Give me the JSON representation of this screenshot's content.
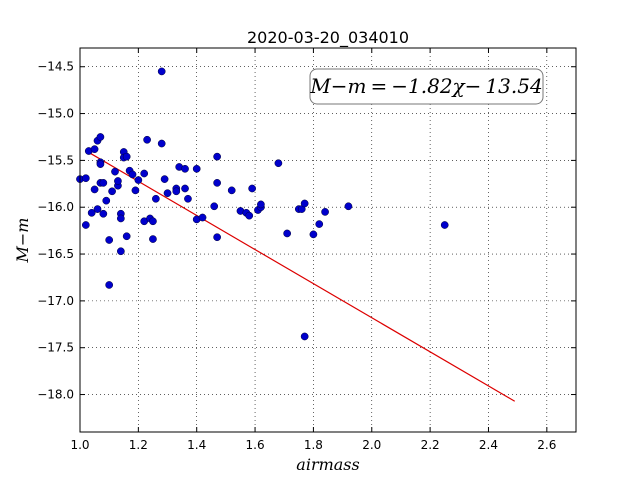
{
  "chart_data": {
    "type": "scatter",
    "title": "2020-03-20_034010",
    "xlabel": "airmass",
    "ylabel": "M−m",
    "xlim": [
      1.0,
      2.7
    ],
    "ylim": [
      -18.4,
      -14.3
    ],
    "y_inverted": true,
    "grid": true,
    "x_ticks": [
      1.0,
      1.2,
      1.4,
      1.6,
      1.8,
      2.0,
      2.2,
      2.4,
      2.6
    ],
    "x_tick_labels": [
      "1.0",
      "1.2",
      "1.4",
      "1.6",
      "1.8",
      "2.0",
      "2.2",
      "2.4",
      "2.6"
    ],
    "y_ticks": [
      -14.5,
      -15.0,
      -15.5,
      -16.0,
      -16.5,
      -17.0,
      -17.5,
      -18.0
    ],
    "y_tick_labels": [
      "−14.5",
      "−15.0",
      "−15.5",
      "−16.0",
      "−16.5",
      "−17.0",
      "−17.5",
      "−18.0"
    ],
    "annotation": "M−m = −1.82χ− 13.54",
    "annotation_position": "top-right",
    "colors": {
      "points": "#0000cc",
      "fit": "#dd0000"
    },
    "series": [
      {
        "kind": "points",
        "points": [
          [
            1.0,
            -15.7
          ],
          [
            1.02,
            -15.69
          ],
          [
            1.02,
            -16.19
          ],
          [
            1.03,
            -15.4
          ],
          [
            1.04,
            -16.06
          ],
          [
            1.05,
            -15.38
          ],
          [
            1.05,
            -15.81
          ],
          [
            1.06,
            -15.29
          ],
          [
            1.06,
            -16.02
          ],
          [
            1.07,
            -15.25
          ],
          [
            1.07,
            -15.52
          ],
          [
            1.07,
            -15.54
          ],
          [
            1.07,
            -15.74
          ],
          [
            1.08,
            -15.74
          ],
          [
            1.08,
            -16.07
          ],
          [
            1.09,
            -15.93
          ],
          [
            1.1,
            -16.35
          ],
          [
            1.1,
            -16.83
          ],
          [
            1.11,
            -15.83
          ],
          [
            1.12,
            -15.62
          ],
          [
            1.13,
            -15.77
          ],
          [
            1.13,
            -15.72
          ],
          [
            1.14,
            -16.07
          ],
          [
            1.14,
            -16.12
          ],
          [
            1.14,
            -16.47
          ],
          [
            1.15,
            -15.41
          ],
          [
            1.15,
            -15.47
          ],
          [
            1.16,
            -15.46
          ],
          [
            1.16,
            -16.31
          ],
          [
            1.17,
            -15.61
          ],
          [
            1.18,
            -15.65
          ],
          [
            1.19,
            -15.82
          ],
          [
            1.2,
            -15.71
          ],
          [
            1.22,
            -15.64
          ],
          [
            1.22,
            -16.15
          ],
          [
            1.23,
            -15.28
          ],
          [
            1.24,
            -16.12
          ],
          [
            1.25,
            -16.34
          ],
          [
            1.25,
            -16.15
          ],
          [
            1.26,
            -15.91
          ],
          [
            1.28,
            -14.55
          ],
          [
            1.28,
            -15.32
          ],
          [
            1.29,
            -15.7
          ],
          [
            1.3,
            -15.85
          ],
          [
            1.33,
            -15.8
          ],
          [
            1.33,
            -15.83
          ],
          [
            1.34,
            -15.57
          ],
          [
            1.36,
            -15.59
          ],
          [
            1.36,
            -15.8
          ],
          [
            1.37,
            -15.91
          ],
          [
            1.4,
            -15.59
          ],
          [
            1.4,
            -16.13
          ],
          [
            1.42,
            -16.11
          ],
          [
            1.46,
            -15.99
          ],
          [
            1.47,
            -15.46
          ],
          [
            1.47,
            -15.74
          ],
          [
            1.47,
            -16.32
          ],
          [
            1.52,
            -15.82
          ],
          [
            1.55,
            -16.04
          ],
          [
            1.57,
            -16.06
          ],
          [
            1.58,
            -16.09
          ],
          [
            1.59,
            -15.8
          ],
          [
            1.61,
            -16.03
          ],
          [
            1.62,
            -16.0
          ],
          [
            1.62,
            -15.97
          ],
          [
            1.68,
            -15.53
          ],
          [
            1.71,
            -16.28
          ],
          [
            1.75,
            -16.02
          ],
          [
            1.76,
            -16.02
          ],
          [
            1.77,
            -15.96
          ],
          [
            1.77,
            -17.38
          ],
          [
            1.8,
            -16.29
          ],
          [
            1.82,
            -16.18
          ],
          [
            1.84,
            -16.05
          ],
          [
            1.92,
            -15.99
          ],
          [
            2.25,
            -16.19
          ]
        ]
      },
      {
        "kind": "fit",
        "slope": -1.82,
        "intercept": -13.54,
        "x_range": [
          1.02,
          2.49
        ]
      }
    ]
  }
}
